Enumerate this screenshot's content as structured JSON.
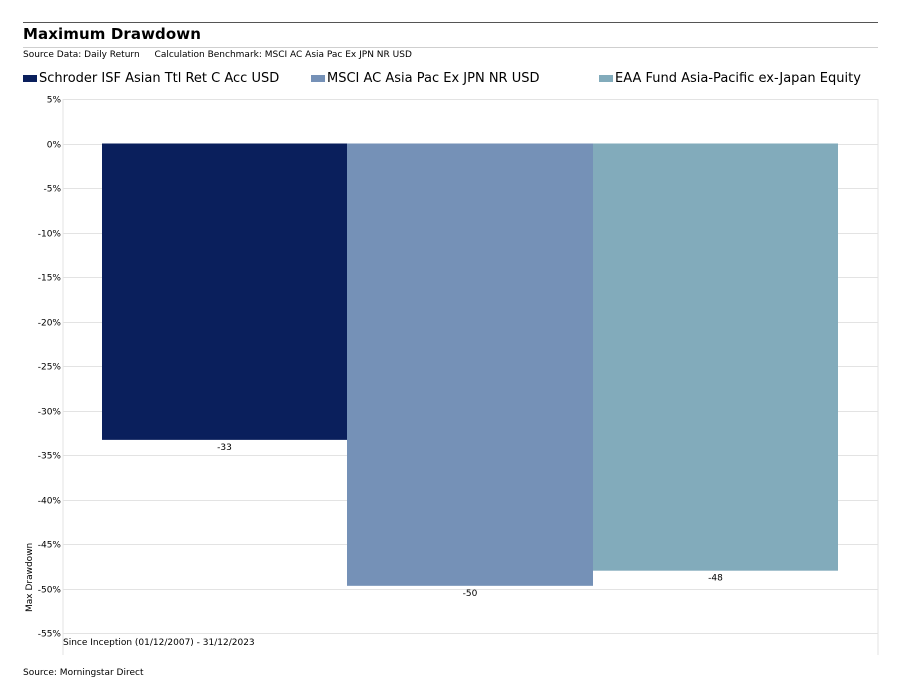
{
  "title": "Maximum Drawdown",
  "subtitle": {
    "source_data": "Source Data: Daily Return",
    "benchmark": "Calculation Benchmark: MSCI AC Asia Pac Ex JPN NR USD"
  },
  "footer": {
    "source": "Source: Morningstar Direct"
  },
  "chart_data": {
    "type": "bar",
    "categories": [
      "Since Inception (01/12/2007) - 31/12/2023"
    ],
    "series": [
      {
        "name": "Schroder ISF Asian Ttl Ret C Acc USD",
        "values": [
          -33.3
        ],
        "label": "-33",
        "color": "#0a1f5c"
      },
      {
        "name": "MSCI AC Asia Pac Ex JPN NR USD",
        "values": [
          -49.7
        ],
        "label": "-50",
        "color": "#7591b7"
      },
      {
        "name": "EAA Fund Asia-Pacific ex-Japan Equity",
        "values": [
          -48.0
        ],
        "label": "-48",
        "color": "#82abbb"
      }
    ],
    "ylabel": "Max Drawdown",
    "xlabel": "",
    "ylim": [
      -55,
      5
    ],
    "yticks": [
      5,
      0,
      -5,
      -10,
      -15,
      -20,
      -25,
      -30,
      -35,
      -40,
      -45,
      -50,
      -55
    ],
    "tick_suffix": "%",
    "grid": true,
    "legend_position": "top"
  }
}
